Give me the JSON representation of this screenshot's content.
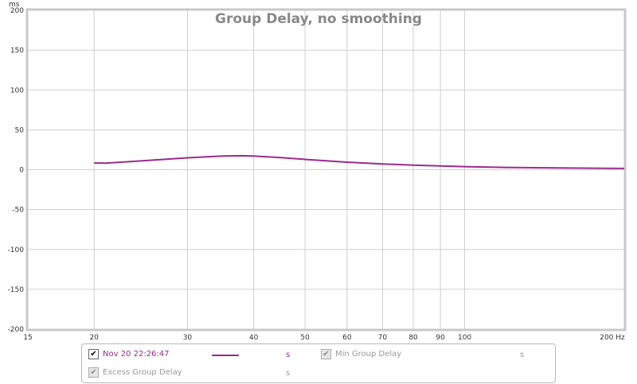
{
  "chart_data": {
    "type": "line",
    "title": "Group Delay, no smoothing",
    "ylabel": "ms",
    "xunit": "Hz",
    "xscale": "log",
    "xlim": [
      15,
      200
    ],
    "ylim": [
      -200,
      200
    ],
    "yticks": [
      200,
      150,
      100,
      50,
      0,
      -50,
      -100,
      -150,
      -200
    ],
    "xticks": [
      15,
      20,
      30,
      40,
      50,
      60,
      70,
      80,
      90,
      100,
      200
    ],
    "grid": true,
    "series": [
      {
        "name": "Nov 20 22:26:47",
        "color": "#9b2a8e",
        "x": [
          20,
          21,
          25,
          30,
          35,
          38,
          40,
          45,
          50,
          60,
          70,
          80,
          90,
          100,
          120,
          150,
          200
        ],
        "y": [
          8.5,
          8.3,
          11.5,
          15,
          17.3,
          17.6,
          17.2,
          15.2,
          13,
          9.5,
          7.3,
          5.8,
          4.7,
          3.9,
          2.9,
          2.2,
          1.6
        ]
      }
    ]
  },
  "legend": {
    "items": [
      {
        "label": "Nov 20 22:26:47",
        "unit": "s",
        "checked": true,
        "enabled": true
      },
      {
        "label": "Min Group Delay",
        "unit": "s",
        "checked": true,
        "enabled": false
      },
      {
        "label": "Excess Group Delay",
        "unit": "s",
        "checked": true,
        "enabled": false
      }
    ]
  }
}
